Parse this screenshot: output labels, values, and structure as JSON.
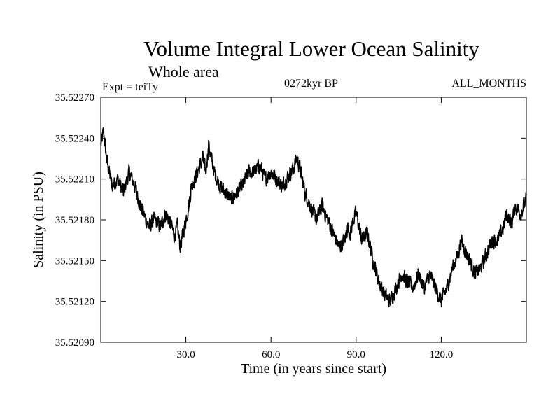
{
  "header": {
    "title": "Volume Integral Lower Ocean Salinity",
    "subtitle": "Whole area",
    "experiment": "Expt = teiTy",
    "period": "0272kyr BP",
    "months": "ALL_MONTHS"
  },
  "chart_data": {
    "type": "line",
    "title": "Volume Integral Lower Ocean Salinity",
    "xlabel": "Time (in years since start)",
    "ylabel": "Salinity (in PSU)",
    "xlim": [
      0,
      150
    ],
    "ylim": [
      35.5209,
      35.5227
    ],
    "x_ticks": [
      30,
      60,
      90,
      120
    ],
    "x_tick_labels": [
      "30.0",
      "60.0",
      "90.0",
      "120.0"
    ],
    "y_ticks": [
      35.5209,
      35.5212,
      35.5215,
      35.5218,
      35.5221,
      35.5224,
      35.5227
    ],
    "y_tick_labels": [
      "35.52090",
      "35.52120",
      "35.52150",
      "35.52180",
      "35.52210",
      "35.52240",
      "35.52270"
    ],
    "grid": false,
    "series": [
      {
        "name": "Salinity",
        "color": "#000000",
        "x": [
          0,
          1,
          2,
          3,
          4,
          6,
          8,
          10,
          12,
          14,
          15,
          16,
          17,
          19,
          21,
          23,
          25,
          26,
          27,
          28,
          30,
          31,
          32,
          33,
          34,
          35,
          36,
          37,
          38,
          39,
          40,
          42,
          44,
          46,
          48,
          50,
          52,
          54,
          56,
          58,
          60,
          62,
          64,
          66,
          68,
          69,
          70,
          71,
          72,
          74,
          76,
          78,
          80,
          82,
          84,
          86,
          87,
          88,
          89,
          90,
          92,
          94,
          96,
          98,
          100,
          102,
          104,
          106,
          108,
          110,
          112,
          114,
          116,
          118,
          120,
          121,
          122,
          124,
          126,
          127,
          128,
          130,
          132,
          134,
          136,
          138,
          140,
          142,
          143,
          144,
          145,
          146,
          148,
          150
        ],
        "values": [
          35.52235,
          35.52245,
          35.52225,
          35.52215,
          35.52205,
          35.5221,
          35.522,
          35.52215,
          35.52205,
          35.5219,
          35.52185,
          35.5218,
          35.52175,
          35.5218,
          35.52175,
          35.52185,
          35.52175,
          35.52168,
          35.52175,
          35.5216,
          35.5218,
          35.5219,
          35.52205,
          35.5221,
          35.52215,
          35.5222,
          35.52225,
          35.52215,
          35.52235,
          35.52225,
          35.52215,
          35.52205,
          35.522,
          35.52195,
          35.522,
          35.52205,
          35.52215,
          35.52215,
          35.5222,
          35.5221,
          35.52215,
          35.5221,
          35.52205,
          35.52212,
          35.52218,
          35.52225,
          35.5222,
          35.5221,
          35.522,
          35.5219,
          35.5218,
          35.5219,
          35.5218,
          35.5217,
          35.5216,
          35.52165,
          35.52175,
          35.5217,
          35.5218,
          35.52185,
          35.52165,
          35.5217,
          35.5215,
          35.52135,
          35.52125,
          35.5212,
          35.5213,
          35.5214,
          35.52135,
          35.5213,
          35.5214,
          35.5213,
          35.5214,
          35.5213,
          35.5212,
          35.52125,
          35.5213,
          35.52145,
          35.52155,
          35.52165,
          35.5216,
          35.5215,
          35.5214,
          35.52145,
          35.52155,
          35.52165,
          35.52165,
          35.52175,
          35.52185,
          35.5218,
          35.52178,
          35.5219,
          35.52185,
          35.52195
        ]
      }
    ]
  }
}
